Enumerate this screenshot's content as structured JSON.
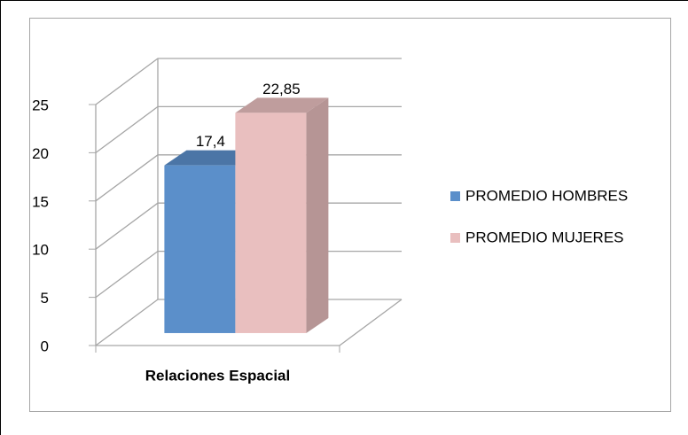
{
  "chart_data": {
    "type": "bar",
    "categories": [
      "Relaciones Espacial"
    ],
    "series": [
      {
        "name": "PROMEDIO HOMBRES",
        "color": "#5b8fca",
        "values": [
          17.4
        ],
        "value_labels": [
          "17,4"
        ]
      },
      {
        "name": "PROMEDIO MUJERES",
        "color": "#e9bfbf",
        "values": [
          22.85
        ],
        "value_labels": [
          "22,85"
        ]
      }
    ],
    "ylim": [
      0,
      25
    ],
    "yticks": [
      0,
      5,
      10,
      15,
      20,
      25
    ],
    "grid": true,
    "legend": "right"
  }
}
